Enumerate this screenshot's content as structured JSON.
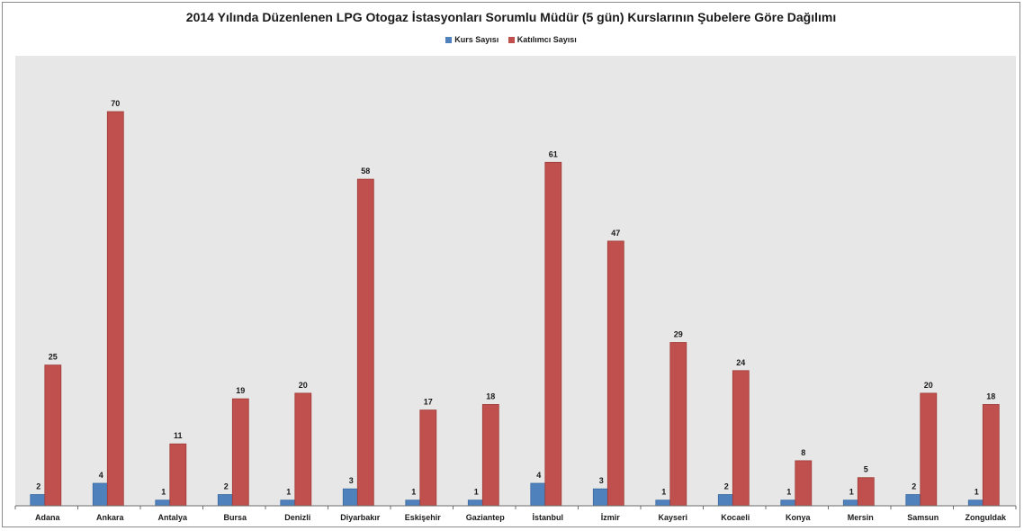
{
  "chart_data": {
    "type": "bar",
    "title": "2014 Yılında Düzenlenen LPG Otogaz İstasyonları Sorumlu Müdür (5 gün) Kurslarının Şubelere Göre Dağılımı",
    "categories": [
      "Adana",
      "Ankara",
      "Antalya",
      "Bursa",
      "Denizli",
      "Diyarbakır",
      "Eskişehir",
      "Gaziantep",
      "İstanbul",
      "İzmir",
      "Kayseri",
      "Kocaeli",
      "Konya",
      "Mersin",
      "Samsun",
      "Zonguldak"
    ],
    "series": [
      {
        "name": "Kurs Sayısı",
        "color": "#4f81bd",
        "values": [
          2,
          4,
          1,
          2,
          1,
          3,
          1,
          1,
          4,
          3,
          1,
          2,
          1,
          1,
          2,
          1
        ]
      },
      {
        "name": "Katılımcı Sayısı",
        "color": "#c0504d",
        "values": [
          25,
          70,
          11,
          19,
          20,
          58,
          17,
          18,
          61,
          47,
          29,
          24,
          8,
          5,
          20,
          18
        ]
      }
    ],
    "ylim": [
      0,
      75
    ],
    "grid": false,
    "legend_position": "top-center",
    "data_labels": true,
    "plot_background": "#e7e7e7"
  }
}
